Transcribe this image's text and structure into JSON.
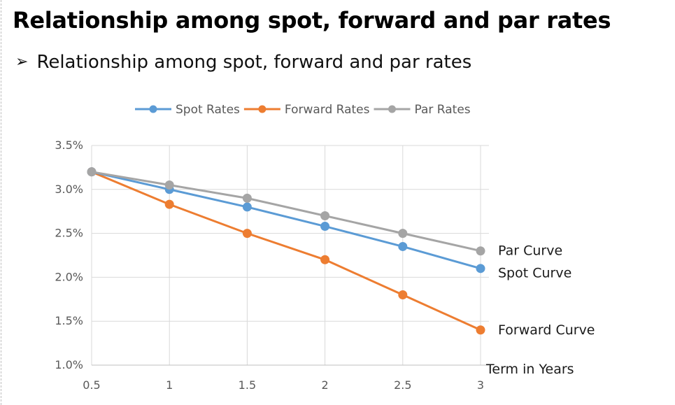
{
  "slide": {
    "title": "Relationship among spot, forward and par rates",
    "bullet_symbol": "➢",
    "bullet_text": "Relationship among spot, forward and par rates"
  },
  "chart_data": {
    "type": "line",
    "title": "",
    "xlabel": "Term in Years",
    "ylabel": "",
    "x": [
      0.5,
      1,
      1.5,
      2,
      2.5,
      3
    ],
    "x_tick_labels": [
      "0.5",
      "1",
      "1.5",
      "2",
      "2.5",
      "3"
    ],
    "ylim": [
      0.01,
      0.035
    ],
    "y_ticks": [
      0.01,
      0.015,
      0.02,
      0.025,
      0.03,
      0.035
    ],
    "y_tick_labels": [
      "1.0%",
      "1.5%",
      "2.0%",
      "2.5%",
      "3.0%",
      "3.5%"
    ],
    "grid": true,
    "legend_position": "top",
    "series": [
      {
        "name": "Spot Rates",
        "color": "#5b9bd5",
        "end_label": "Spot Curve",
        "values": [
          0.032,
          0.03,
          0.028,
          0.0258,
          0.0235,
          0.021
        ]
      },
      {
        "name": "Forward Rates",
        "color": "#ed7d31",
        "end_label": "Forward Curve",
        "values": [
          0.032,
          0.0283,
          0.025,
          0.022,
          0.018,
          0.014
        ]
      },
      {
        "name": "Par Rates",
        "color": "#a5a5a5",
        "end_label": "Par Curve",
        "values": [
          0.032,
          0.0305,
          0.029,
          0.027,
          0.025,
          0.023
        ]
      }
    ]
  }
}
